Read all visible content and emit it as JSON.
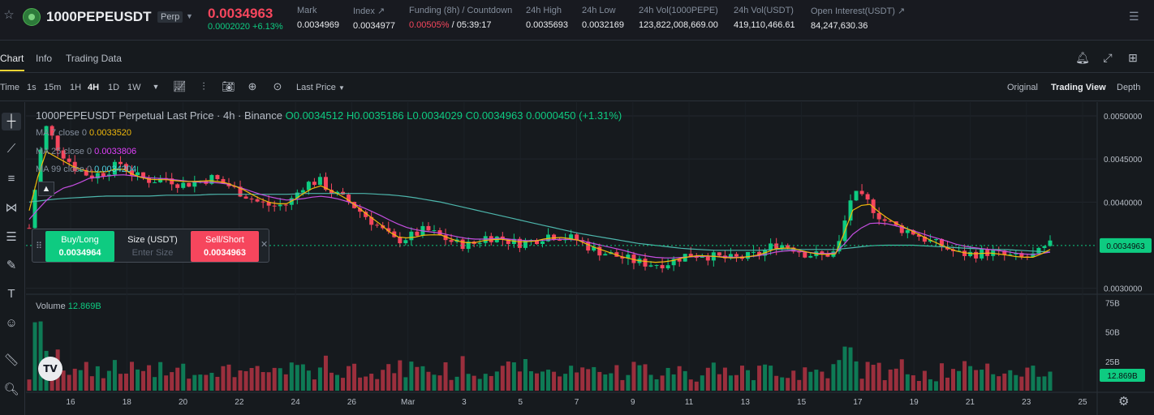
{
  "header": {
    "symbol": "1000PEPEUSDT",
    "contract_type": "Perp",
    "last_price": "0.0034963",
    "change": "0.0002020 +6.13%",
    "stats": [
      {
        "label": "Mark",
        "value": "0.0034969"
      },
      {
        "label": "Index ↗",
        "value": "0.0034977"
      },
      {
        "label": "Funding (8h) / Countdown",
        "value_red": "0.00505%",
        "value_rest": " / 05:39:17"
      },
      {
        "label": "24h High",
        "value": "0.0035693"
      },
      {
        "label": "24h Low",
        "value": "0.0032169"
      },
      {
        "label": "24h Vol(1000PEPE)",
        "value": "123,822,008,669.00"
      },
      {
        "label": "24h Vol(USDT)",
        "value": "419,110,466.61"
      },
      {
        "label": "Open Interest(USDT) ↗",
        "value": "84,247,630.36"
      }
    ],
    "colors": {
      "up": "#0ecb81",
      "down": "#f6465d",
      "accent": "#fcd535"
    }
  },
  "tabs": [
    "Chart",
    "Info",
    "Trading Data"
  ],
  "tab_icons": [
    "bell-icon",
    "expand-icon",
    "grid-icon"
  ],
  "toolbar": {
    "intervals": [
      "Time",
      "1s",
      "15m",
      "1H",
      "4H",
      "1D",
      "1W"
    ],
    "active_interval": "4H",
    "price_type": "Last Price",
    "views": [
      "Original",
      "Trading View",
      "Depth"
    ],
    "active_view": "Trading View"
  },
  "tools": [
    "crosshair-icon",
    "trendline-icon",
    "horizontal-lines-icon",
    "pattern-icon",
    "fib-icon",
    "brush-icon",
    "text-icon",
    "emoji-icon",
    "ruler-icon",
    "zoom-icon"
  ],
  "legend": {
    "title": "1000PEPEUSDT Perpetual Last Price · 4h · Binance",
    "o": "O0.0034512",
    "h": "H0.0035186",
    "l": "L0.0034029",
    "c": "C0.0034963",
    "chg": "0.0000450 (+1.31%)",
    "ma7_label": "MA 7 close 0",
    "ma7_value": "0.0033520",
    "ma25_label": "MA 25 close 0",
    "ma25_value": "0.0033806",
    "ma99_label": "MA 99 close 0",
    "ma99_value": "0.0034204",
    "volume_label": "Volume",
    "volume_value": "12.869B"
  },
  "trade_widget": {
    "buy_label": "Buy/Long",
    "buy_price": "0.0034964",
    "size_label": "Size (USDT)",
    "size_placeholder": "Enter Size",
    "sell_label": "Sell/Short",
    "sell_price": "0.0034963"
  },
  "chart_data": {
    "type": "candlestick",
    "price_axis_ticks": [
      "0.0050000",
      "0.0045000",
      "0.0040000",
      "0.0030000"
    ],
    "price_tick_values": [
      0.005,
      0.0045,
      0.004,
      0.003
    ],
    "price_range": [
      0.00294,
      0.00516
    ],
    "current_price_label": "0.0034963",
    "current_price": 0.0034963,
    "volume_axis_ticks": [
      "75B",
      "50B",
      "25B"
    ],
    "volume_tick_values": [
      75,
      50,
      25
    ],
    "volume_range": [
      0,
      80
    ],
    "current_volume_label": "12.869B",
    "x_ticks": [
      "16",
      "18",
      "20",
      "22",
      "24",
      "26",
      "Mar",
      "3",
      "5",
      "7",
      "9",
      "11",
      "13",
      "15",
      "17",
      "19",
      "21",
      "23",
      "25"
    ],
    "close_path": [
      0.0037,
      0.0049,
      0.0046,
      0.0044,
      0.0043,
      0.00435,
      0.00445,
      0.0043,
      0.00425,
      0.00428,
      0.0042,
      0.00424,
      0.00428,
      0.0042,
      0.0041,
      0.004,
      0.00395,
      0.00398,
      0.0042,
      0.00425,
      0.0041,
      0.004,
      0.00385,
      0.0037,
      0.00355,
      0.0036,
      0.00368,
      0.0036,
      0.00352,
      0.0035,
      0.0036,
      0.00358,
      0.00352,
      0.00355,
      0.00362,
      0.0036,
      0.00356,
      0.00345,
      0.0034,
      0.00335,
      0.0033,
      0.00328,
      0.0033,
      0.00338,
      0.0034,
      0.00336,
      0.00334,
      0.00336,
      0.0034,
      0.00352,
      0.00348,
      0.0034,
      0.00338,
      0.00342,
      0.0041,
      0.004,
      0.0038,
      0.0037,
      0.00365,
      0.00355,
      0.00348,
      0.0034,
      0.0034,
      0.00342,
      0.00338,
      0.00335,
      0.00338,
      0.0035
    ],
    "ma7": [
      0.0039,
      0.0046,
      0.0045,
      0.0044,
      0.00435,
      0.00435,
      0.0044,
      0.0043,
      0.00426,
      0.00426,
      0.00424,
      0.00424,
      0.00425,
      0.00422,
      0.00415,
      0.00405,
      0.00398,
      0.00398,
      0.0041,
      0.0042,
      0.00412,
      0.00402,
      0.00388,
      0.00375,
      0.0036,
      0.00358,
      0.00362,
      0.00362,
      0.00355,
      0.00352,
      0.00356,
      0.00357,
      0.00354,
      0.00354,
      0.00358,
      0.00359,
      0.00356,
      0.00348,
      0.00342,
      0.00336,
      0.00332,
      0.0033,
      0.00331,
      0.00336,
      0.00338,
      0.00337,
      0.00335,
      0.00336,
      0.00339,
      0.00346,
      0.00347,
      0.00342,
      0.00339,
      0.0034,
      0.0039,
      0.004,
      0.00385,
      0.00374,
      0.00366,
      0.00357,
      0.00349,
      0.00342,
      0.0034,
      0.00341,
      0.00339,
      0.00336,
      0.00336,
      0.00345
    ],
    "ma25": [
      0.0038,
      0.004,
      0.00415,
      0.0042,
      0.00428,
      0.0043,
      0.00432,
      0.0043,
      0.00428,
      0.00427,
      0.00425,
      0.00423,
      0.00423,
      0.00421,
      0.00416,
      0.0041,
      0.00405,
      0.00402,
      0.00404,
      0.00407,
      0.00405,
      0.004,
      0.00393,
      0.00385,
      0.00376,
      0.00369,
      0.00366,
      0.00364,
      0.0036,
      0.00357,
      0.00357,
      0.00358,
      0.00356,
      0.00355,
      0.00356,
      0.00357,
      0.00356,
      0.00352,
      0.00348,
      0.00344,
      0.00339,
      0.00336,
      0.00335,
      0.00336,
      0.00337,
      0.00337,
      0.00336,
      0.00336,
      0.00338,
      0.00342,
      0.00344,
      0.00342,
      0.0034,
      0.00341,
      0.00362,
      0.00375,
      0.00376,
      0.00372,
      0.00367,
      0.00361,
      0.00356,
      0.0035,
      0.00347,
      0.00345,
      0.00343,
      0.0034,
      0.00339,
      0.00342
    ],
    "ma99": [
      0.004,
      0.00402,
      0.00404,
      0.00405,
      0.00406,
      0.00407,
      0.00407,
      0.00407,
      0.00407,
      0.00408,
      0.00408,
      0.00408,
      0.00409,
      0.00409,
      0.00409,
      0.00409,
      0.00409,
      0.00409,
      0.0041,
      0.0041,
      0.0041,
      0.0041,
      0.0041,
      0.00409,
      0.00408,
      0.00406,
      0.00403,
      0.004,
      0.00396,
      0.00392,
      0.00388,
      0.00384,
      0.0038,
      0.00376,
      0.00372,
      0.00368,
      0.00364,
      0.00361,
      0.00358,
      0.00355,
      0.00352,
      0.0035,
      0.00348,
      0.00346,
      0.00345,
      0.00344,
      0.00344,
      0.00344,
      0.00344,
      0.00345,
      0.00345,
      0.00345,
      0.00345,
      0.00345,
      0.00347,
      0.00349,
      0.0035,
      0.0035,
      0.0035,
      0.00349,
      0.00348,
      0.00347,
      0.00346,
      0.00345,
      0.00345,
      0.00344,
      0.00343,
      0.00342
    ]
  }
}
